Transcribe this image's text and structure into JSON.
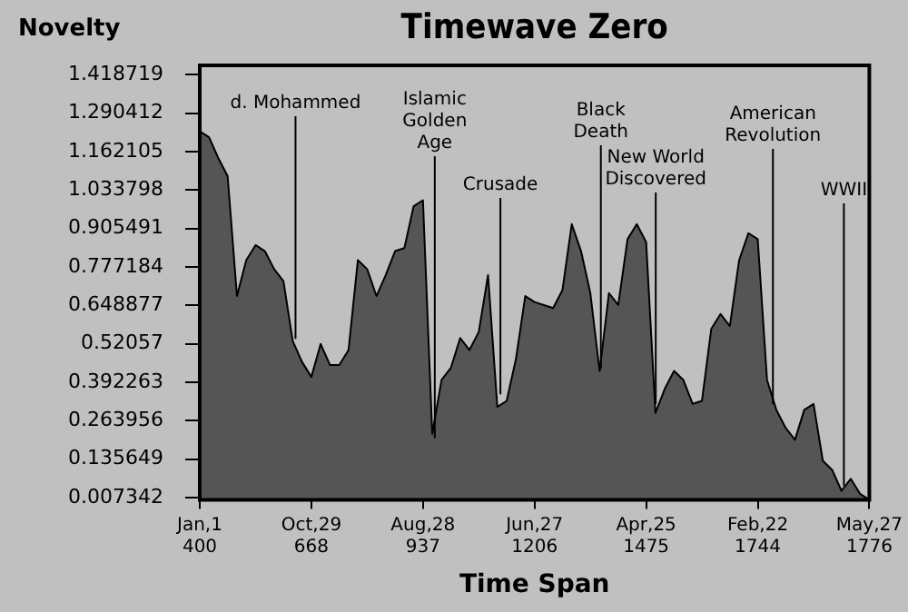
{
  "chart_data": {
    "type": "area",
    "title": "Timewave Zero",
    "xlabel": "Time Span",
    "ylabel": "Novelty",
    "grid": false,
    "categories": [
      "Jan,1 400",
      null,
      null,
      null,
      null,
      null,
      null,
      null,
      null,
      null,
      null,
      null,
      "Oct,29 668",
      null,
      null,
      null,
      null,
      null,
      null,
      null,
      null,
      null,
      null,
      null,
      "Aug,28 937",
      null,
      null,
      null,
      null,
      null,
      null,
      null,
      null,
      null,
      null,
      null,
      "Jun,27 1206",
      null,
      null,
      null,
      null,
      null,
      null,
      null,
      null,
      null,
      null,
      null,
      "Apr,25 1475",
      null,
      null,
      null,
      null,
      null,
      null,
      null,
      null,
      null,
      null,
      null,
      "Feb,22 1744",
      null,
      null,
      null,
      null,
      null,
      null,
      null,
      null,
      null,
      null,
      null,
      "May,27 1776"
    ],
    "series": [
      {
        "color": "#555555",
        "values": [
          1.23,
          1.21,
          1.14,
          1.08,
          0.68,
          0.8,
          0.85,
          0.83,
          0.77,
          0.73,
          0.53,
          0.46,
          0.41,
          0.52,
          0.45,
          0.45,
          0.5,
          0.8,
          0.77,
          0.68,
          0.75,
          0.83,
          0.84,
          0.98,
          1.0,
          0.22,
          0.4,
          0.44,
          0.54,
          0.5,
          0.56,
          0.75,
          0.31,
          0.33,
          0.47,
          0.68,
          0.66,
          0.65,
          0.64,
          0.7,
          0.92,
          0.83,
          0.69,
          0.43,
          0.69,
          0.65,
          0.87,
          0.92,
          0.86,
          0.29,
          0.37,
          0.43,
          0.4,
          0.32,
          0.33,
          0.57,
          0.62,
          0.58,
          0.8,
          0.89,
          0.87,
          0.4,
          0.3,
          0.24,
          0.2,
          0.3,
          0.32,
          0.13,
          0.1,
          0.03,
          0.07,
          0.02,
          0
        ]
      }
    ],
    "ylim": [
      0,
      1.45
    ],
    "yticks": [
      0.007342,
      0.135649,
      0.263956,
      0.392263,
      0.52057,
      0.648877,
      0.777184,
      0.905491,
      1.033798,
      1.162105,
      1.290412,
      1.418719
    ],
    "annotations": [
      {
        "text": "d. Mohammed",
        "y": 0.537
      },
      {
        "text": "Islamic\nGolden\nAge",
        "y": 0.206
      },
      {
        "text": "Crusade",
        "y": 0.352
      },
      {
        "text": "Black\nDeath",
        "y": 0.438
      },
      {
        "text": "New World\nDiscovered",
        "y": 0.319
      },
      {
        "text": "American\nRevolution",
        "y": 0.319
      },
      {
        "text": "WWII",
        "y": 0.047
      }
    ]
  }
}
